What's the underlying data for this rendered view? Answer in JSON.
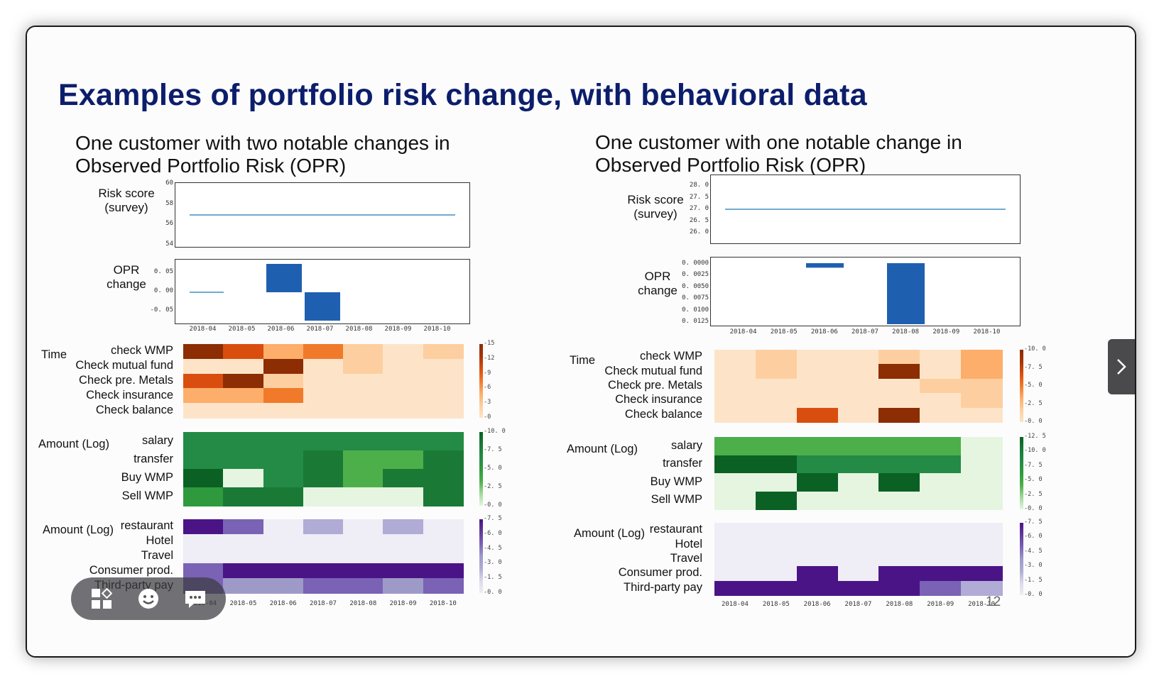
{
  "slide": {
    "title": "Examples of portfolio risk change, with behavioral data",
    "page_number": "12"
  },
  "colors": {
    "title": "#0c1e6b",
    "line": "#1f77b4",
    "bar": "#1f5fb0",
    "oranges": [
      "#fde4c8",
      "#fdcfa0",
      "#fdae6b",
      "#f07a2a",
      "#d94e0e",
      "#a63603",
      "#8c2d04"
    ],
    "greens": [
      "#e5f5e0",
      "#a1d99b",
      "#4daf4a",
      "#2e9a3d",
      "#238b45",
      "#1a7a35",
      "#0b6124"
    ],
    "purples": [
      "#efedf5",
      "#dadaeb",
      "#b0acd5",
      "#9e9ac8",
      "#7a62b5",
      "#5e3c99",
      "#4a1486"
    ]
  },
  "left": {
    "subtitle": "One customer with two notable changes in\nObserved Portfolio Risk (OPR)",
    "risk_label": "Risk score\n(survey)",
    "risk_ticks": [
      "60",
      "58",
      "56",
      "54"
    ],
    "opr_label": "OPR\nchange",
    "opr_ticks": [
      "0. 05",
      "0. 00",
      "-0. 05"
    ],
    "x_ticks": [
      "2018-04",
      "2018-05",
      "2018-06",
      "2018-07",
      "2018-08",
      "2018-09",
      "2018-10"
    ],
    "time_group": "Time",
    "time_rows": [
      "check WMP",
      "Check mutual fund",
      "Check pre. Metals",
      "Check insurance",
      "Check balance"
    ],
    "time_cb": [
      "15",
      "12",
      "9",
      "6",
      "3",
      "0"
    ],
    "time_grid": [
      [
        6,
        4,
        2,
        3,
        1,
        0,
        1
      ],
      [
        0,
        0,
        6,
        0,
        1,
        0,
        0
      ],
      [
        4,
        6,
        1,
        0,
        0,
        0,
        0
      ],
      [
        2,
        2,
        3,
        0,
        0,
        0,
        0
      ],
      [
        0,
        0,
        0,
        0,
        0,
        0,
        0
      ]
    ],
    "amount_group": "Amount (Log)",
    "amount_rows": [
      "salary",
      "transfer",
      "Buy WMP",
      "Sell WMP"
    ],
    "amount_cb": [
      "10. 0",
      "7. 5",
      "5. 0",
      "2. 5",
      "0. 0"
    ],
    "amount_grid": [
      [
        4,
        4,
        4,
        4,
        4,
        4,
        4
      ],
      [
        4,
        4,
        4,
        5,
        2,
        2,
        5
      ],
      [
        6,
        0,
        4,
        5,
        2,
        5,
        5
      ],
      [
        3,
        5,
        5,
        0,
        0,
        0,
        5
      ]
    ],
    "spend_group": "Amount (Log)",
    "spend_rows": [
      "restaurant",
      "Hotel",
      "Travel",
      "Consumer prod.",
      "Third-party pay"
    ],
    "spend_cb": [
      "7. 5",
      "6. 0",
      "4. 5",
      "3. 0",
      "1. 5",
      "0. 0"
    ],
    "spend_grid": [
      [
        6,
        4,
        0,
        2,
        0,
        2,
        0
      ],
      [
        0,
        0,
        0,
        0,
        0,
        0,
        0
      ],
      [
        0,
        0,
        0,
        0,
        0,
        0,
        0
      ],
      [
        4,
        6,
        6,
        6,
        6,
        6,
        6
      ],
      [
        4,
        3,
        3,
        4,
        4,
        3,
        4
      ]
    ],
    "x_ticks_bottom": [
      "2018-04",
      "2018-05",
      "2018-06",
      "2018-07",
      "2018-08",
      "2018-09",
      "2018-10"
    ]
  },
  "right": {
    "subtitle": "One customer with one notable change in\nObserved Portfolio Risk (OPR)",
    "risk_label": "Risk score\n(survey)",
    "risk_ticks": [
      "28. 0",
      "27. 5",
      "27. 0",
      "26. 5",
      "26. 0"
    ],
    "opr_label": "OPR\nchange",
    "opr_ticks": [
      "0. 0000",
      "0. 0025",
      "0. 0050",
      "0. 0075",
      "0. 0100",
      "0. 0125"
    ],
    "x_ticks": [
      "2018-04",
      "2018-05",
      "2018-06",
      "2018-07",
      "2018-08",
      "2018-09",
      "2018-10"
    ],
    "time_group": "Time",
    "time_rows": [
      "check WMP",
      "Check mutual fund",
      "Check pre. Metals",
      "Check insurance",
      "Check balance"
    ],
    "time_cb": [
      "10. 0",
      "7. 5",
      "5. 0",
      "2. 5",
      "0. 0"
    ],
    "time_grid": [
      [
        0,
        1,
        0,
        0,
        1,
        0,
        2
      ],
      [
        0,
        1,
        0,
        0,
        6,
        0,
        2
      ],
      [
        0,
        0,
        0,
        0,
        0,
        1,
        1
      ],
      [
        0,
        0,
        0,
        0,
        0,
        0,
        1
      ],
      [
        0,
        0,
        4,
        0,
        6,
        0,
        0
      ]
    ],
    "amount_group": "Amount (Log)",
    "amount_rows": [
      "salary",
      "transfer",
      "Buy WMP",
      "Sell WMP"
    ],
    "amount_cb": [
      "12. 5",
      "10. 0",
      "7. 5",
      "5. 0",
      "2. 5",
      "0. 0"
    ],
    "amount_grid": [
      [
        2,
        2,
        2,
        2,
        2,
        2,
        0
      ],
      [
        6,
        6,
        4,
        4,
        4,
        4,
        0
      ],
      [
        0,
        0,
        6,
        0,
        6,
        0,
        0
      ],
      [
        0,
        6,
        0,
        0,
        0,
        0,
        0
      ]
    ],
    "spend_group": "Amount (Log)",
    "spend_rows": [
      "restaurant",
      "Hotel",
      "Travel",
      "Consumer prod.",
      "Third-party pay"
    ],
    "spend_cb": [
      "7. 5",
      "6. 0",
      "4. 5",
      "3. 0",
      "1. 5",
      "0. 0"
    ],
    "spend_grid": [
      [
        0,
        0,
        0,
        0,
        0,
        0,
        0
      ],
      [
        0,
        0,
        0,
        0,
        0,
        0,
        0
      ],
      [
        0,
        0,
        0,
        0,
        0,
        0,
        0
      ],
      [
        0,
        0,
        6,
        0,
        6,
        6,
        6
      ],
      [
        6,
        6,
        6,
        6,
        6,
        4,
        2
      ]
    ],
    "x_ticks_bottom": [
      "2018-04",
      "2018-05",
      "2018-06",
      "2018-07",
      "2018-08",
      "2018-09",
      "2018-10"
    ]
  },
  "chart_data": [
    {
      "type": "line",
      "title": "",
      "ylabel": "Risk score (survey)",
      "x": [
        "2018-04",
        "2018-05",
        "2018-06",
        "2018-07",
        "2018-08",
        "2018-09",
        "2018-10"
      ],
      "values": [
        57.0,
        57.0,
        57.0,
        57.0,
        57.0,
        57.0,
        57.0
      ],
      "ylim": [
        54,
        60
      ]
    },
    {
      "type": "bar",
      "title": "",
      "ylabel": "OPR change",
      "categories": [
        "2018-04",
        "2018-05",
        "2018-06",
        "2018-07",
        "2018-08",
        "2018-09",
        "2018-10"
      ],
      "values": [
        0,
        0,
        0.06,
        -0.06,
        0,
        0,
        0
      ],
      "ylim": [
        -0.07,
        0.07
      ]
    },
    {
      "type": "line",
      "title": "",
      "ylabel": "Risk score (survey)",
      "x": [
        "2018-04",
        "2018-05",
        "2018-06",
        "2018-07",
        "2018-08",
        "2018-09",
        "2018-10"
      ],
      "values": [
        27.0,
        27.0,
        27.0,
        27.0,
        27.0,
        27.0,
        27.0
      ],
      "ylim": [
        26,
        28
      ]
    },
    {
      "type": "bar",
      "title": "",
      "ylabel": "OPR change",
      "categories": [
        "2018-04",
        "2018-05",
        "2018-06",
        "2018-07",
        "2018-08",
        "2018-09",
        "2018-10"
      ],
      "values": [
        0,
        0,
        0.001,
        0,
        0.0135,
        0,
        0
      ],
      "ylim": [
        0,
        0.0135
      ]
    }
  ],
  "toolbar": {
    "apps_icon": "apps-grid-icon",
    "emoji_icon": "smiley-icon",
    "chat_icon": "chat-bubble-icon"
  }
}
